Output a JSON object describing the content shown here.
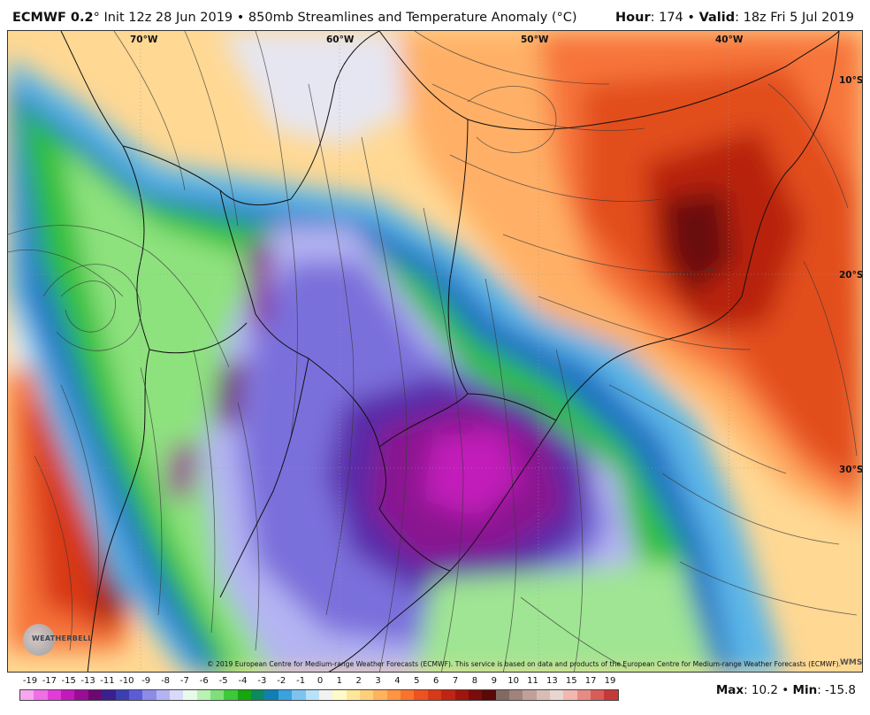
{
  "header": {
    "model": "ECMWF 0.2",
    "degree_suffix": "°",
    "init_text": " Init 12z 28 Jun 2019 • 850mb Streamlines and Temperature Anomaly (°C)",
    "hour_label": "Hour",
    "hour_value": ": 174 • ",
    "valid_label": "Valid",
    "valid_value": ": 18z Fri 5 Jul 2019"
  },
  "map": {
    "longitude_labels": [
      "70°W",
      "60°W",
      "50°W",
      "40°W"
    ],
    "latitude_labels": [
      "10°S",
      "20°S",
      "30°S"
    ],
    "copyright": "© 2019 European Centre for Medium-range Weather Forecasts (ECMWF). This service is based on data and products of the European Centre for Medium-range Weather Forecasts (ECMWF).",
    "logo_text": "WEATHERBELL",
    "wms_text": "WMS"
  },
  "colorbar": {
    "labels": [
      "-19",
      "-17",
      "-15",
      "-13",
      "-11",
      "-10",
      "-9",
      "-8",
      "-7",
      "-6",
      "-5",
      "-4",
      "-3",
      "-2",
      "-1",
      "0",
      "1",
      "2",
      "3",
      "4",
      "5",
      "6",
      "7",
      "8",
      "9",
      "10",
      "11",
      "13",
      "15",
      "17",
      "19"
    ],
    "colors": [
      "#f7a6f0",
      "#ef6fe6",
      "#e23bd8",
      "#c21aba",
      "#9a0d96",
      "#6d0870",
      "#3b1f8f",
      "#3b3fb0",
      "#5c5cd6",
      "#8c8ce8",
      "#b4b4f2",
      "#d9d9fb",
      "#e8fbe8",
      "#b9f2b3",
      "#7fe07a",
      "#3fc83a",
      "#16a60e",
      "#0c8a5e",
      "#0f7fb5",
      "#3aa2de",
      "#7cc4ef",
      "#b8e2f7",
      "#f2f2f2",
      "#fffbc8",
      "#ffe79a",
      "#ffd07a",
      "#ffb35c",
      "#ff9442",
      "#f8742c",
      "#ec5320",
      "#d83916",
      "#c02412",
      "#a0150f",
      "#7a0c0c",
      "#5a0808",
      "#826a63",
      "#a0837a",
      "#c0a19a",
      "#d8bdb6",
      "#e8d6d1",
      "#f2b7b0",
      "#e88a84",
      "#d85c58",
      "#c53a38"
    ],
    "scale_min": -19,
    "scale_max": 19
  },
  "stats": {
    "max_label": "Max",
    "max_value": ": 10.2 • ",
    "min_label": "Min",
    "min_value": ": -15.8"
  }
}
